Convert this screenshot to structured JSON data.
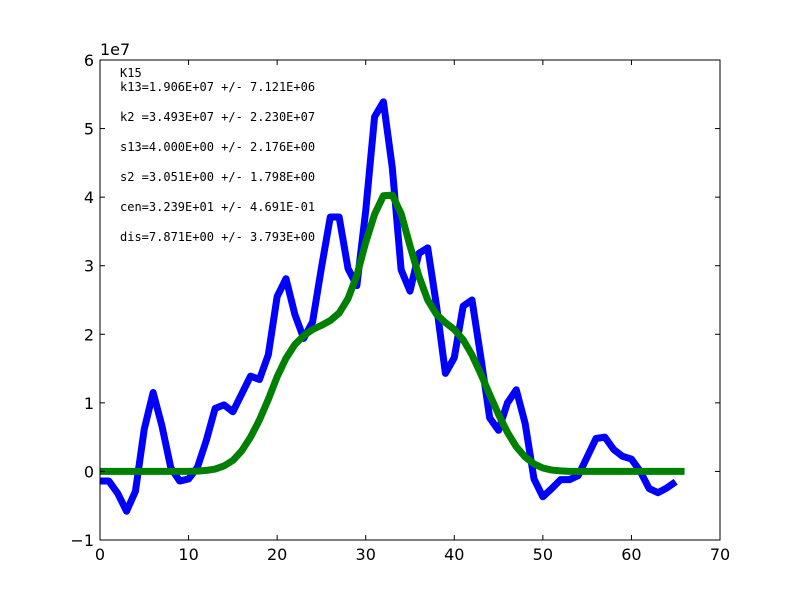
{
  "chart_data": {
    "type": "line",
    "title": "",
    "xlabel": "",
    "ylabel": "",
    "xlim": [
      0,
      70
    ],
    "ylim": [
      -10000000,
      60000000
    ],
    "x_ticks": [
      0,
      10,
      20,
      30,
      40,
      50,
      60,
      70
    ],
    "x_tick_labels": [
      "0",
      "10",
      "20",
      "30",
      "40",
      "50",
      "60",
      "70"
    ],
    "y_ticks": [
      -10000000,
      0,
      10000000,
      20000000,
      30000000,
      40000000,
      50000000,
      60000000
    ],
    "y_tick_labels": [
      "−1",
      "0",
      "1",
      "2",
      "3",
      "4",
      "5",
      "6"
    ],
    "y_multiplier": "1e7",
    "grid": false,
    "annotations": [
      "K15",
      "k13=1.906E+07 +/- 7.121E+06",
      "k2 =3.493E+07 +/- 2.230E+07",
      "s13=4.000E+00 +/- 2.176E+00",
      "s2 =3.051E+00 +/- 1.798E+00",
      "cen=3.239E+01 +/- 4.691E-01",
      "dis=7.871E+00 +/- 3.793E+00"
    ],
    "series": [
      {
        "color": "#0000ff",
        "x": [
          0,
          1,
          2,
          3,
          4,
          5,
          6,
          7,
          8,
          9,
          10,
          11,
          12,
          13,
          14,
          15,
          16,
          17,
          18,
          19,
          20,
          21,
          22,
          23,
          24,
          25,
          26,
          27,
          28,
          29,
          30,
          31,
          32,
          33,
          34,
          35,
          36,
          37,
          38,
          39,
          40,
          41,
          42,
          43,
          44,
          45,
          46,
          47,
          48,
          49,
          50,
          51,
          52,
          53,
          54,
          55,
          56,
          57,
          58,
          59,
          60,
          61,
          62,
          63,
          64,
          65
        ],
        "y": [
          -1400000,
          -1400000,
          -3200000,
          -5800000,
          -2900000,
          6200000,
          11500000,
          6600000,
          500000,
          -1400000,
          -1100000,
          600000,
          4500000,
          9200000,
          9700000,
          8700000,
          11300000,
          13900000,
          13400000,
          17000000,
          25500000,
          28100000,
          22900000,
          19400000,
          21800000,
          29700000,
          37100000,
          37100000,
          29600000,
          27100000,
          38000000,
          51700000,
          53900000,
          44300000,
          29400000,
          26300000,
          31800000,
          32600000,
          24100000,
          14300000,
          16600000,
          24100000,
          25000000,
          16600000,
          7800000,
          6000000,
          10000000,
          11900000,
          7000000,
          -1100000,
          -3700000,
          -2500000,
          -1200000,
          -1200000,
          -600000,
          2100000,
          4800000,
          5000000,
          3200000,
          2200000,
          1800000,
          0,
          -2500000,
          -3100000,
          -2400000,
          -1500000
        ]
      },
      {
        "color": "#008000",
        "x": [
          0,
          1,
          2,
          3,
          4,
          5,
          6,
          7,
          8,
          9,
          10,
          11,
          12,
          13,
          14,
          15,
          16,
          17,
          18,
          19,
          20,
          21,
          22,
          23,
          24,
          25,
          26,
          27,
          28,
          29,
          30,
          31,
          32,
          33,
          34,
          35,
          36,
          37,
          38,
          39,
          40,
          41,
          42,
          43,
          44,
          45,
          46,
          47,
          48,
          49,
          50,
          51,
          52,
          53,
          54,
          55,
          56,
          57,
          58,
          59,
          60,
          61,
          62,
          63,
          64,
          65,
          66
        ],
        "y": [
          0,
          0,
          0,
          0,
          0,
          0,
          0,
          0,
          0,
          0,
          0,
          50000,
          150000,
          350000,
          800000,
          1600000,
          3000000,
          5000000,
          7500000,
          10500000,
          13800000,
          16500000,
          18500000,
          19800000,
          20700000,
          21300000,
          22000000,
          23100000,
          25200000,
          28600000,
          33400000,
          37500000,
          40200000,
          40300000,
          37600000,
          32900000,
          28500000,
          25000000,
          22900000,
          21700000,
          20700000,
          19200000,
          17000000,
          14200000,
          11200000,
          8300000,
          5700000,
          3600000,
          2100000,
          1100000,
          500000,
          200000,
          80000,
          0,
          0,
          0,
          0,
          0,
          0,
          0,
          0,
          0,
          0,
          0,
          0,
          0,
          0
        ]
      }
    ]
  }
}
